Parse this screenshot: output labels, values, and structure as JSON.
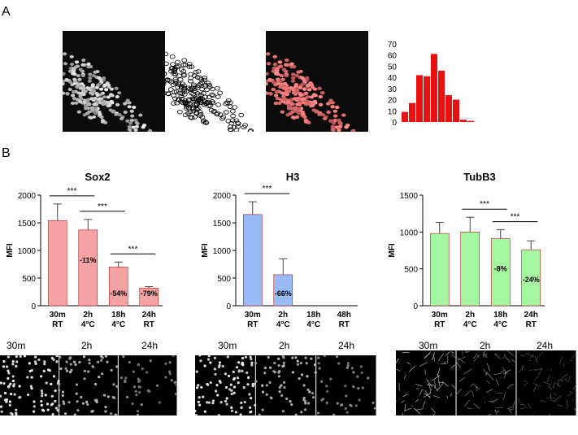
{
  "panel_labels": {
    "a": "A",
    "b": "B"
  },
  "image_tiles": [
    "nuclear-stain",
    "segmentation-outlines",
    "overlay"
  ],
  "colors": {
    "sox2": "#f5a3a3",
    "h3": "#99bbf5",
    "tubb3": "#a6f5a0",
    "hist": "#e81010",
    "sig_line": "#000000"
  },
  "chart_data": [
    {
      "type": "bar",
      "title": "",
      "categories": [
        "",
        "",
        "",
        "",
        "",
        "",
        "",
        "",
        "",
        "",
        "",
        ""
      ],
      "values": [
        9,
        17,
        42,
        41,
        61,
        46,
        24,
        20,
        2,
        1,
        0,
        0
      ],
      "ylim": [
        0,
        70
      ],
      "yticks": [
        "0",
        "10",
        "20",
        "30",
        "40",
        "50",
        "60",
        "70"
      ],
      "color": "#e81010"
    },
    {
      "type": "bar",
      "title": "Sox2",
      "ylabel": "MFI",
      "ylim": [
        0,
        2000
      ],
      "yticks": [
        "0",
        "500",
        "1000",
        "1500",
        "2000"
      ],
      "categories": [
        [
          "30m",
          "RT"
        ],
        [
          "2h",
          "4°C"
        ],
        [
          "18h",
          "4°C"
        ],
        [
          "24h",
          "RT"
        ]
      ],
      "values": [
        1540,
        1370,
        700,
        320
      ],
      "errors": [
        300,
        190,
        90,
        25
      ],
      "bar_labels": [
        "",
        "-11%",
        "-54%",
        "-79%"
      ],
      "significance": [
        {
          "from": 0,
          "to": 1,
          "label": "***"
        },
        {
          "from": 1,
          "to": 2,
          "label": "***"
        },
        {
          "from": 2,
          "to": 3,
          "label": "***"
        }
      ]
    },
    {
      "type": "bar",
      "title": "H3",
      "ylabel": "MFI",
      "ylim": [
        0,
        2000
      ],
      "yticks": [
        "0",
        "500",
        "1000",
        "1500",
        "2000"
      ],
      "categories": [
        [
          "30m",
          "RT"
        ],
        [
          "2h",
          "4°C"
        ],
        [
          "18h",
          "4°C"
        ],
        [
          "48h",
          "RT"
        ]
      ],
      "values": [
        1650,
        560,
        0,
        0
      ],
      "errors": [
        230,
        290,
        0,
        0
      ],
      "bar_labels": [
        "",
        "-66%",
        "",
        ""
      ],
      "significance": [
        {
          "from": 0,
          "to": 1,
          "label": "***"
        }
      ]
    },
    {
      "type": "bar",
      "title": "TubB3",
      "ylabel": "MFI",
      "ylim": [
        0,
        1500
      ],
      "yticks": [
        "0",
        "500",
        "1000",
        "1500"
      ],
      "categories": [
        [
          "30m",
          "RT"
        ],
        [
          "2h",
          "4°C"
        ],
        [
          "18h",
          "4°C"
        ],
        [
          "24h",
          "RT"
        ]
      ],
      "values": [
        980,
        1000,
        910,
        760
      ],
      "errors": [
        150,
        200,
        120,
        120
      ],
      "bar_labels": [
        "",
        "",
        "-8%",
        "-24%"
      ],
      "significance": [
        {
          "from": 1,
          "to": 2,
          "label": "***"
        },
        {
          "from": 2,
          "to": 3,
          "label": "***"
        }
      ]
    }
  ],
  "strips": [
    {
      "labels": [
        "30m",
        "2h",
        "24h"
      ]
    },
    {
      "labels": [
        "30m",
        "2h",
        "24h"
      ]
    },
    {
      "labels": [
        "30m",
        "2h",
        "24h"
      ]
    }
  ]
}
